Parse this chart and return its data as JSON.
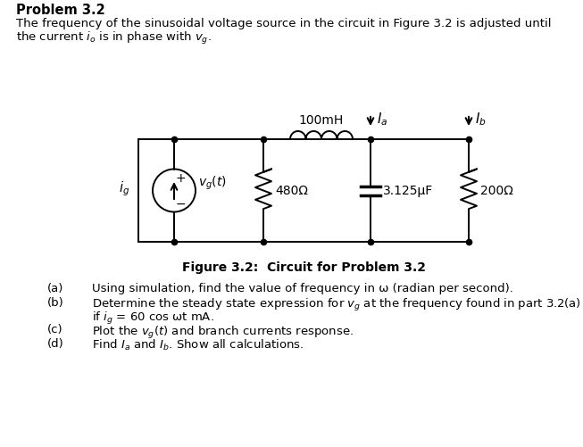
{
  "title": "Problem 3.2",
  "problem_text_line1": "The frequency of the sinusoidal voltage source in the circuit in Figure 3.2 is adjusted until",
  "problem_text_line2": "the current $i_o$ is in phase with $v_g$.",
  "figure_caption": "Figure 3.2:  Circuit for Problem 3.2",
  "inductor_label": "100mH",
  "resistor1_label": "480Ω",
  "capacitor_label": "3.125μF",
  "resistor2_label": "200Ω",
  "source_label": "$v_g(t)$",
  "ig_label": "$i_g$",
  "Ia_label": "$I_a$",
  "Ib_label": "$I_b$",
  "plus_label": "+",
  "minus_label": "−",
  "qa_label": "(a)",
  "qb_label": "(b)",
  "qc_label": "(c)",
  "qd_label": "(d)",
  "qa_text": "Using simulation, find the value of frequency in ω (radian per second).",
  "qb_text_line1": "Determine the steady state expression for $v_g$ at the frequency found in part 3.2(a)",
  "qb_text_line2": "if $i_g$ = 60 cos ωt mA.",
  "qc_text": "Plot the $v_g(t)$ and branch currents response.",
  "qd_text": "Find $I_a$ and $I_b$. Show all calculations.",
  "bg_color": "#ffffff"
}
